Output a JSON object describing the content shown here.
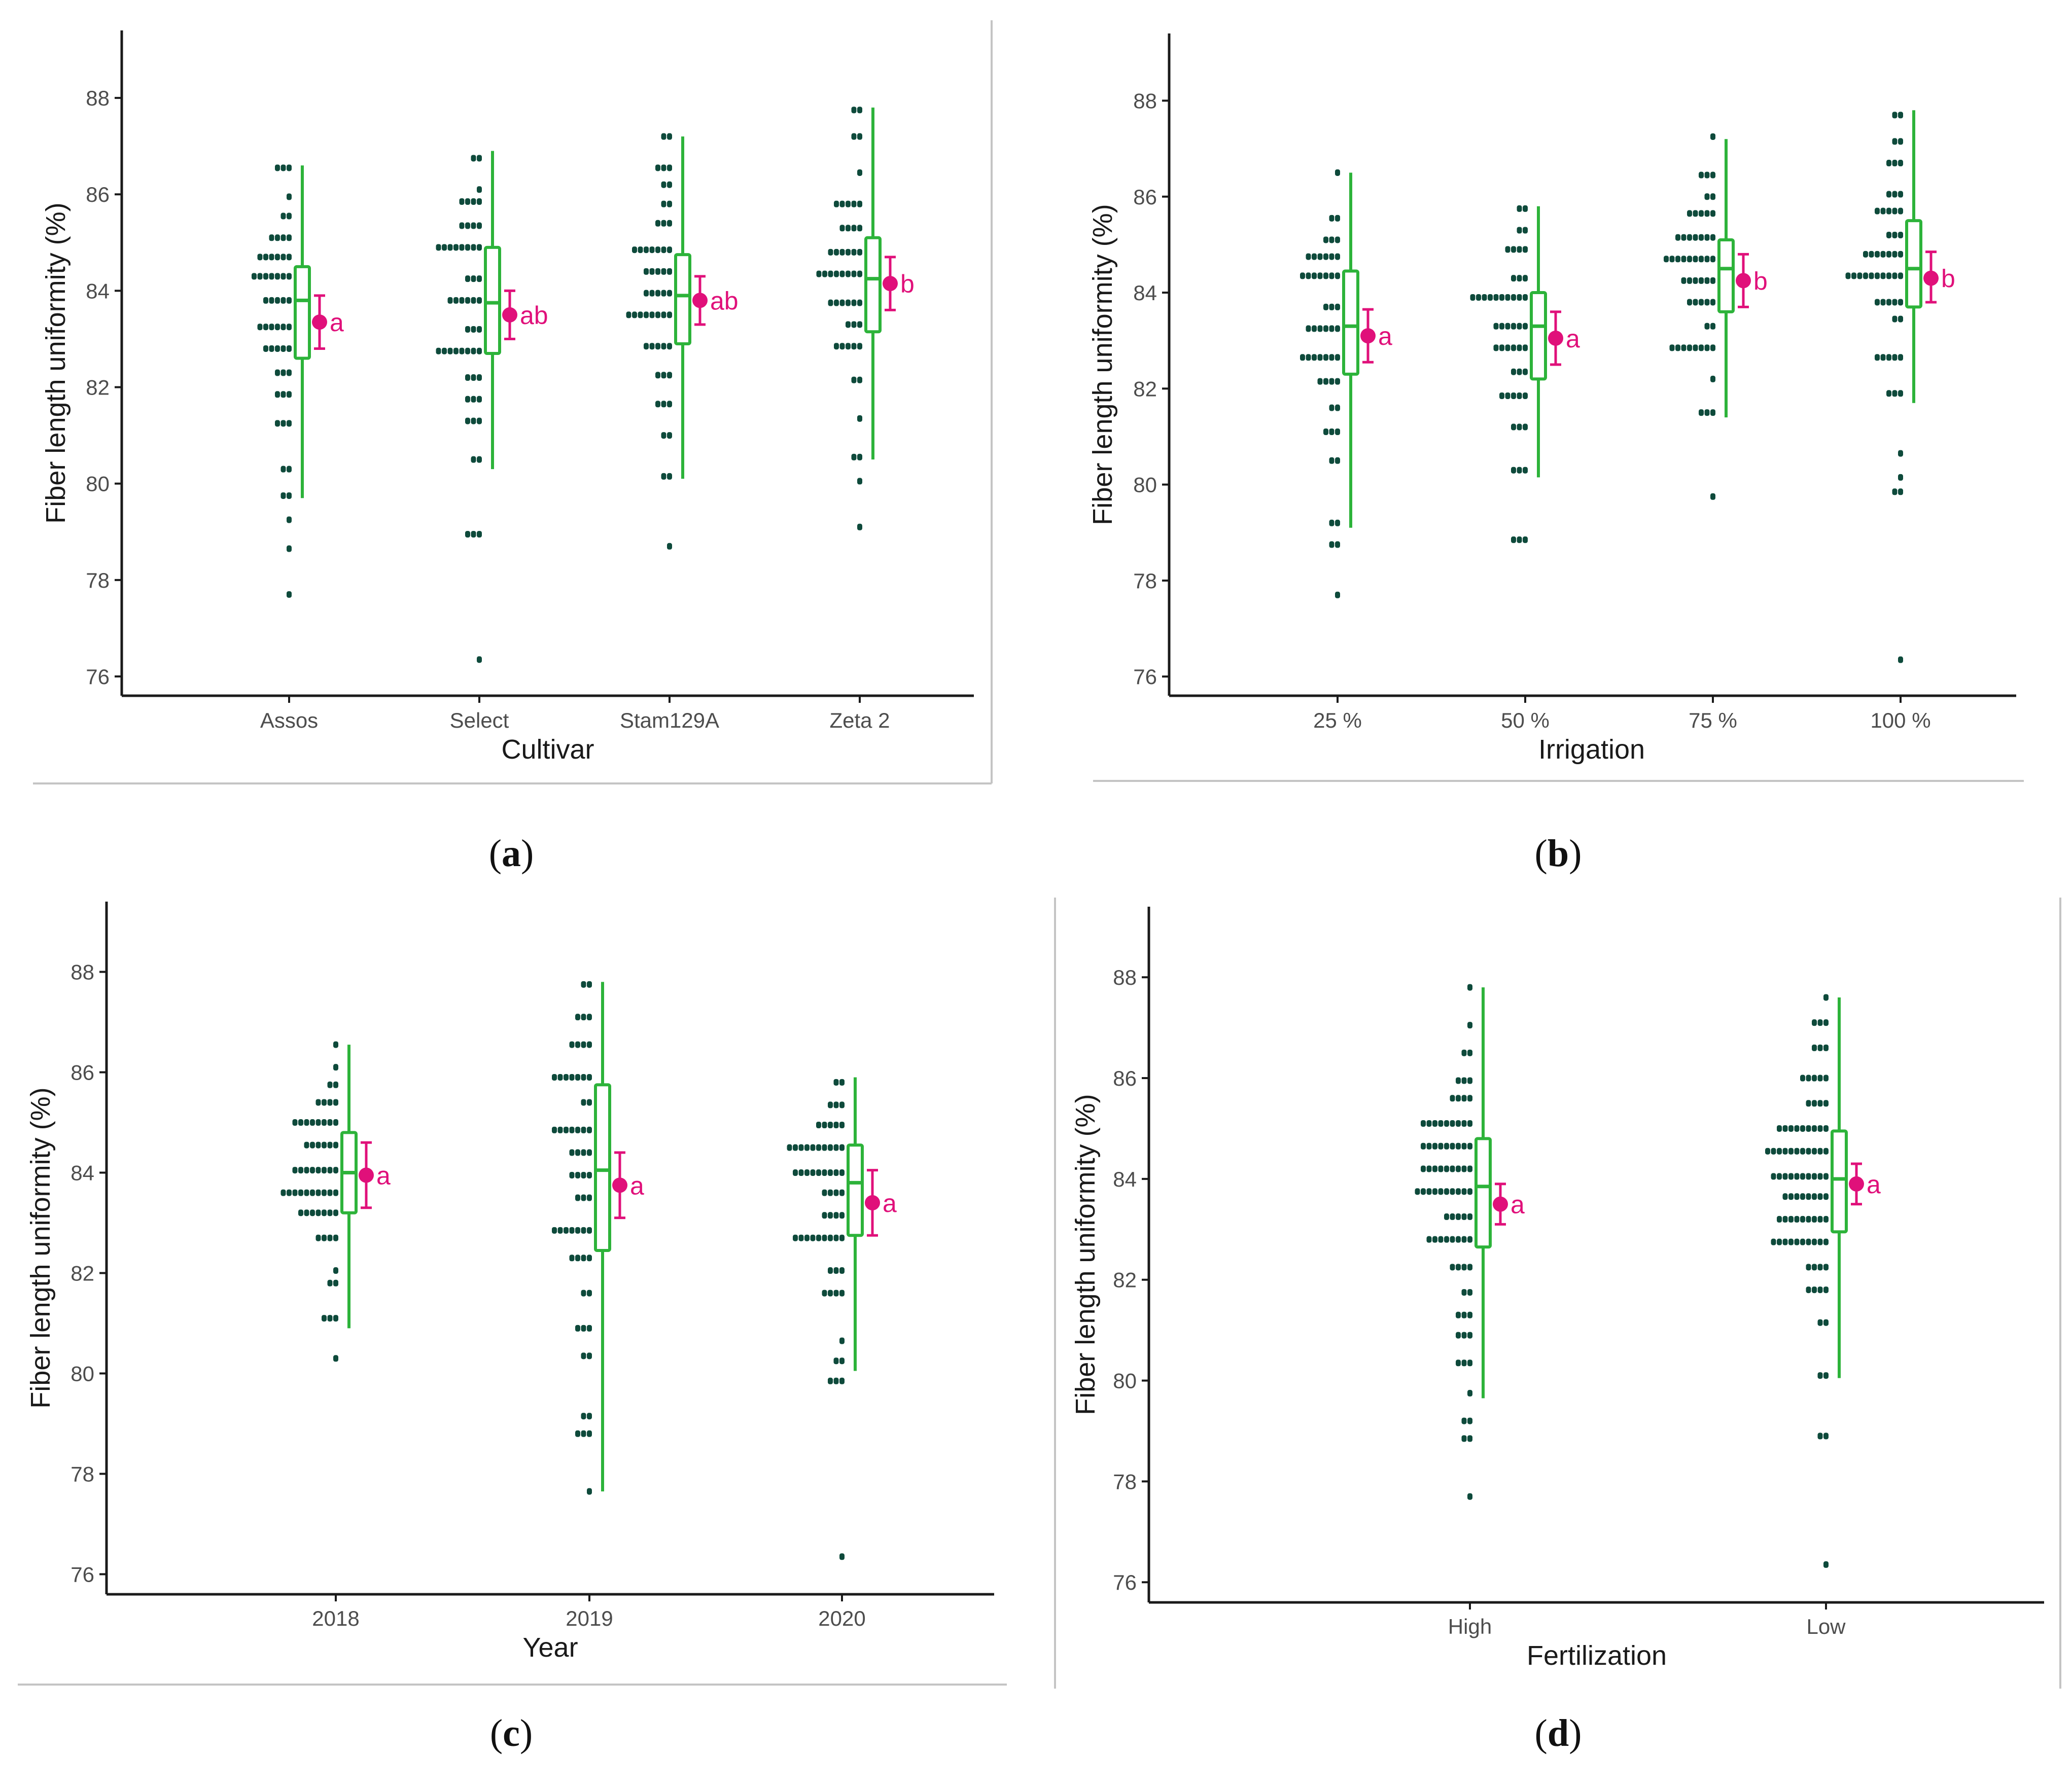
{
  "colors": {
    "dots": "#0e4a3b",
    "box": "#2db33a",
    "mean": "#e0107a",
    "axis": "#1a1a1a",
    "tick_text": "#4d4d4d",
    "frame": "#c4c4c4"
  },
  "chart_data": [
    {
      "id": "a",
      "type": "raincloud",
      "caption": "a",
      "xlabel": "Cultivar",
      "ylabel": "Fiber length uniformity (%)",
      "ylim": [
        75.6,
        89.4
      ],
      "yticks": [
        76,
        78,
        80,
        82,
        84,
        86,
        88
      ],
      "categories": [
        "Assos",
        "Select",
        "Stam129A",
        "Zeta 2"
      ],
      "groups": [
        {
          "name": "Assos",
          "whisker": [
            79.7,
            86.6
          ],
          "box": [
            82.6,
            84.5
          ],
          "median": 83.8,
          "mean": 83.35,
          "ci": [
            82.8,
            83.9
          ],
          "letter": "a",
          "dots": [
            [
              86.55,
              3
            ],
            [
              85.95,
              1
            ],
            [
              85.55,
              2
            ],
            [
              85.1,
              4
            ],
            [
              84.7,
              6
            ],
            [
              84.3,
              7
            ],
            [
              83.8,
              5
            ],
            [
              83.25,
              6
            ],
            [
              82.8,
              5
            ],
            [
              82.3,
              3
            ],
            [
              81.85,
              3
            ],
            [
              81.25,
              3
            ],
            [
              80.3,
              2
            ],
            [
              79.75,
              2
            ],
            [
              79.25,
              1
            ],
            [
              78.65,
              1
            ],
            [
              77.7,
              1
            ]
          ]
        },
        {
          "name": "Select",
          "whisker": [
            80.3,
            86.9
          ],
          "box": [
            82.7,
            84.9
          ],
          "median": 83.75,
          "mean": 83.5,
          "ci": [
            83.0,
            84.0
          ],
          "letter": "ab",
          "dots": [
            [
              86.75,
              2
            ],
            [
              86.1,
              1
            ],
            [
              85.85,
              4
            ],
            [
              85.35,
              4
            ],
            [
              84.9,
              8
            ],
            [
              84.25,
              3
            ],
            [
              83.8,
              6
            ],
            [
              83.2,
              3
            ],
            [
              82.75,
              8
            ],
            [
              82.2,
              3
            ],
            [
              81.75,
              3
            ],
            [
              81.3,
              3
            ],
            [
              80.5,
              2
            ],
            [
              78.95,
              3
            ],
            [
              76.35,
              1
            ]
          ]
        },
        {
          "name": "Stam129A",
          "whisker": [
            80.1,
            87.2
          ],
          "box": [
            82.9,
            84.75
          ],
          "median": 83.9,
          "mean": 83.8,
          "ci": [
            83.3,
            84.3
          ],
          "letter": "ab",
          "dots": [
            [
              87.2,
              2
            ],
            [
              86.55,
              3
            ],
            [
              86.2,
              2
            ],
            [
              85.8,
              2
            ],
            [
              85.4,
              3
            ],
            [
              84.85,
              7
            ],
            [
              84.4,
              5
            ],
            [
              83.95,
              5
            ],
            [
              83.5,
              8
            ],
            [
              82.85,
              5
            ],
            [
              82.25,
              3
            ],
            [
              81.65,
              3
            ],
            [
              81.0,
              2
            ],
            [
              80.15,
              2
            ],
            [
              78.7,
              1
            ]
          ]
        },
        {
          "name": "Zeta 2",
          "whisker": [
            80.5,
            87.8
          ],
          "box": [
            83.15,
            85.1
          ],
          "median": 84.25,
          "mean": 84.15,
          "ci": [
            83.6,
            84.7
          ],
          "letter": "b",
          "dots": [
            [
              87.75,
              2
            ],
            [
              87.2,
              2
            ],
            [
              86.45,
              1
            ],
            [
              85.8,
              5
            ],
            [
              85.3,
              4
            ],
            [
              84.8,
              6
            ],
            [
              84.35,
              8
            ],
            [
              83.75,
              6
            ],
            [
              83.3,
              3
            ],
            [
              82.85,
              5
            ],
            [
              82.15,
              2
            ],
            [
              81.35,
              1
            ],
            [
              80.55,
              2
            ],
            [
              80.05,
              1
            ],
            [
              79.1,
              1
            ]
          ]
        }
      ]
    },
    {
      "id": "b",
      "type": "raincloud",
      "caption": "b",
      "xlabel": "Irrigation",
      "ylabel": "Fiber length uniformity (%)",
      "ylim": [
        75.6,
        89.4
      ],
      "yticks": [
        76,
        78,
        80,
        82,
        84,
        86,
        88
      ],
      "categories": [
        "25 %",
        "50 %",
        "75 %",
        "100 %"
      ],
      "groups": [
        {
          "name": "25 %",
          "whisker": [
            79.1,
            86.5
          ],
          "box": [
            82.3,
            84.45
          ],
          "median": 83.3,
          "mean": 83.1,
          "ci": [
            82.55,
            83.65
          ],
          "letter": "a",
          "dots": [
            [
              86.5,
              1
            ],
            [
              85.55,
              2
            ],
            [
              85.1,
              3
            ],
            [
              84.75,
              6
            ],
            [
              84.35,
              7
            ],
            [
              83.7,
              3
            ],
            [
              83.25,
              6
            ],
            [
              82.65,
              7
            ],
            [
              82.15,
              4
            ],
            [
              81.6,
              2
            ],
            [
              81.1,
              3
            ],
            [
              80.5,
              2
            ],
            [
              79.2,
              2
            ],
            [
              78.75,
              2
            ],
            [
              77.7,
              1
            ]
          ]
        },
        {
          "name": "50 %",
          "whisker": [
            80.15,
            85.8
          ],
          "box": [
            82.2,
            84.0
          ],
          "median": 83.3,
          "mean": 83.05,
          "ci": [
            82.5,
            83.6
          ],
          "letter": "a",
          "dots": [
            [
              85.75,
              2
            ],
            [
              85.3,
              2
            ],
            [
              84.9,
              4
            ],
            [
              84.3,
              3
            ],
            [
              83.9,
              10
            ],
            [
              83.3,
              6
            ],
            [
              82.85,
              6
            ],
            [
              82.35,
              3
            ],
            [
              81.85,
              5
            ],
            [
              81.2,
              3
            ],
            [
              80.3,
              3
            ],
            [
              78.85,
              3
            ]
          ]
        },
        {
          "name": "75 %",
          "whisker": [
            81.4,
            87.2
          ],
          "box": [
            83.6,
            85.1
          ],
          "median": 84.5,
          "mean": 84.25,
          "ci": [
            83.7,
            84.8
          ],
          "letter": "b",
          "dots": [
            [
              87.25,
              1
            ],
            [
              86.45,
              3
            ],
            [
              86.0,
              2
            ],
            [
              85.65,
              5
            ],
            [
              85.15,
              7
            ],
            [
              84.7,
              9
            ],
            [
              84.25,
              6
            ],
            [
              83.8,
              5
            ],
            [
              83.3,
              2
            ],
            [
              82.85,
              8
            ],
            [
              82.2,
              1
            ],
            [
              81.5,
              3
            ],
            [
              79.75,
              1
            ]
          ]
        },
        {
          "name": "100 %",
          "whisker": [
            81.7,
            87.8
          ],
          "box": [
            83.7,
            85.5
          ],
          "median": 84.5,
          "mean": 84.3,
          "ci": [
            83.8,
            84.85
          ],
          "letter": "b",
          "dots": [
            [
              87.7,
              2
            ],
            [
              87.15,
              2
            ],
            [
              86.7,
              3
            ],
            [
              86.05,
              3
            ],
            [
              85.7,
              5
            ],
            [
              85.2,
              3
            ],
            [
              84.8,
              7
            ],
            [
              84.35,
              10
            ],
            [
              83.8,
              5
            ],
            [
              83.45,
              2
            ],
            [
              82.65,
              5
            ],
            [
              81.9,
              3
            ],
            [
              80.65,
              1
            ],
            [
              80.15,
              1
            ],
            [
              79.85,
              2
            ],
            [
              76.35,
              1
            ]
          ]
        }
      ]
    },
    {
      "id": "c",
      "type": "raincloud",
      "caption": "c",
      "xlabel": "Year",
      "ylabel": "Fiber length uniformity (%)",
      "ylim": [
        75.6,
        89.4
      ],
      "yticks": [
        76,
        78,
        80,
        82,
        84,
        86,
        88
      ],
      "categories": [
        "2018",
        "2019",
        "2020"
      ],
      "groups": [
        {
          "name": "2018",
          "whisker": [
            80.9,
            86.55
          ],
          "box": [
            83.2,
            84.8
          ],
          "median": 84.0,
          "mean": 83.95,
          "ci": [
            83.3,
            84.6
          ],
          "letter": "a",
          "dots": [
            [
              86.55,
              1
            ],
            [
              86.1,
              1
            ],
            [
              85.75,
              2
            ],
            [
              85.4,
              4
            ],
            [
              85.0,
              8
            ],
            [
              84.55,
              6
            ],
            [
              84.05,
              8
            ],
            [
              83.6,
              10
            ],
            [
              83.2,
              7
            ],
            [
              82.7,
              4
            ],
            [
              82.05,
              1
            ],
            [
              81.8,
              2
            ],
            [
              81.1,
              3
            ],
            [
              80.3,
              1
            ]
          ]
        },
        {
          "name": "2019",
          "whisker": [
            77.65,
            87.8
          ],
          "box": [
            82.45,
            85.75
          ],
          "median": 84.05,
          "mean": 83.75,
          "ci": [
            83.1,
            84.4
          ],
          "letter": "a",
          "dots": [
            [
              87.75,
              2
            ],
            [
              87.1,
              3
            ],
            [
              86.55,
              4
            ],
            [
              85.9,
              7
            ],
            [
              85.4,
              2
            ],
            [
              84.85,
              7
            ],
            [
              84.4,
              4
            ],
            [
              83.95,
              4
            ],
            [
              83.5,
              3
            ],
            [
              82.85,
              7
            ],
            [
              82.3,
              4
            ],
            [
              81.6,
              2
            ],
            [
              80.9,
              3
            ],
            [
              80.35,
              2
            ],
            [
              79.15,
              2
            ],
            [
              78.8,
              3
            ],
            [
              77.65,
              1
            ]
          ]
        },
        {
          "name": "2020",
          "whisker": [
            80.05,
            85.9
          ],
          "box": [
            82.75,
            84.55
          ],
          "median": 83.8,
          "mean": 83.4,
          "ci": [
            82.75,
            84.05
          ],
          "letter": "a",
          "dots": [
            [
              85.8,
              2
            ],
            [
              85.35,
              3
            ],
            [
              84.95,
              5
            ],
            [
              84.5,
              10
            ],
            [
              84.0,
              9
            ],
            [
              83.6,
              4
            ],
            [
              83.15,
              4
            ],
            [
              82.7,
              9
            ],
            [
              82.05,
              3
            ],
            [
              81.6,
              4
            ],
            [
              80.65,
              1
            ],
            [
              80.25,
              2
            ],
            [
              79.85,
              3
            ],
            [
              76.35,
              1
            ]
          ]
        }
      ]
    },
    {
      "id": "d",
      "type": "raincloud",
      "caption": "d",
      "xlabel": "Fertilization",
      "ylabel": "Fiber length uniformity (%)",
      "ylim": [
        75.6,
        89.4
      ],
      "yticks": [
        76,
        78,
        80,
        82,
        84,
        86,
        88
      ],
      "categories": [
        "High",
        "Low"
      ],
      "groups": [
        {
          "name": "High",
          "whisker": [
            79.65,
            87.8
          ],
          "box": [
            82.65,
            84.8
          ],
          "median": 83.85,
          "mean": 83.5,
          "ci": [
            83.1,
            83.9
          ],
          "letter": "a",
          "dots": [
            [
              87.8,
              1
            ],
            [
              87.05,
              1
            ],
            [
              86.5,
              2
            ],
            [
              85.95,
              3
            ],
            [
              85.6,
              4
            ],
            [
              85.1,
              9
            ],
            [
              84.65,
              9
            ],
            [
              84.2,
              9
            ],
            [
              83.75,
              10
            ],
            [
              83.25,
              5
            ],
            [
              82.8,
              8
            ],
            [
              82.25,
              4
            ],
            [
              81.75,
              2
            ],
            [
              81.3,
              3
            ],
            [
              80.9,
              3
            ],
            [
              80.35,
              3
            ],
            [
              79.75,
              1
            ],
            [
              79.2,
              2
            ],
            [
              78.85,
              2
            ],
            [
              77.7,
              1
            ]
          ]
        },
        {
          "name": "Low",
          "whisker": [
            80.05,
            87.6
          ],
          "box": [
            82.95,
            84.95
          ],
          "median": 84.0,
          "mean": 83.9,
          "ci": [
            83.5,
            84.3
          ],
          "letter": "a",
          "dots": [
            [
              87.6,
              1
            ],
            [
              87.1,
              3
            ],
            [
              86.6,
              3
            ],
            [
              86.0,
              5
            ],
            [
              85.5,
              4
            ],
            [
              85.0,
              9
            ],
            [
              84.55,
              11
            ],
            [
              84.05,
              10
            ],
            [
              83.65,
              8
            ],
            [
              83.2,
              9
            ],
            [
              82.75,
              10
            ],
            [
              82.25,
              4
            ],
            [
              81.8,
              4
            ],
            [
              81.15,
              2
            ],
            [
              80.1,
              2
            ],
            [
              78.9,
              2
            ],
            [
              76.35,
              1
            ]
          ]
        }
      ]
    }
  ]
}
